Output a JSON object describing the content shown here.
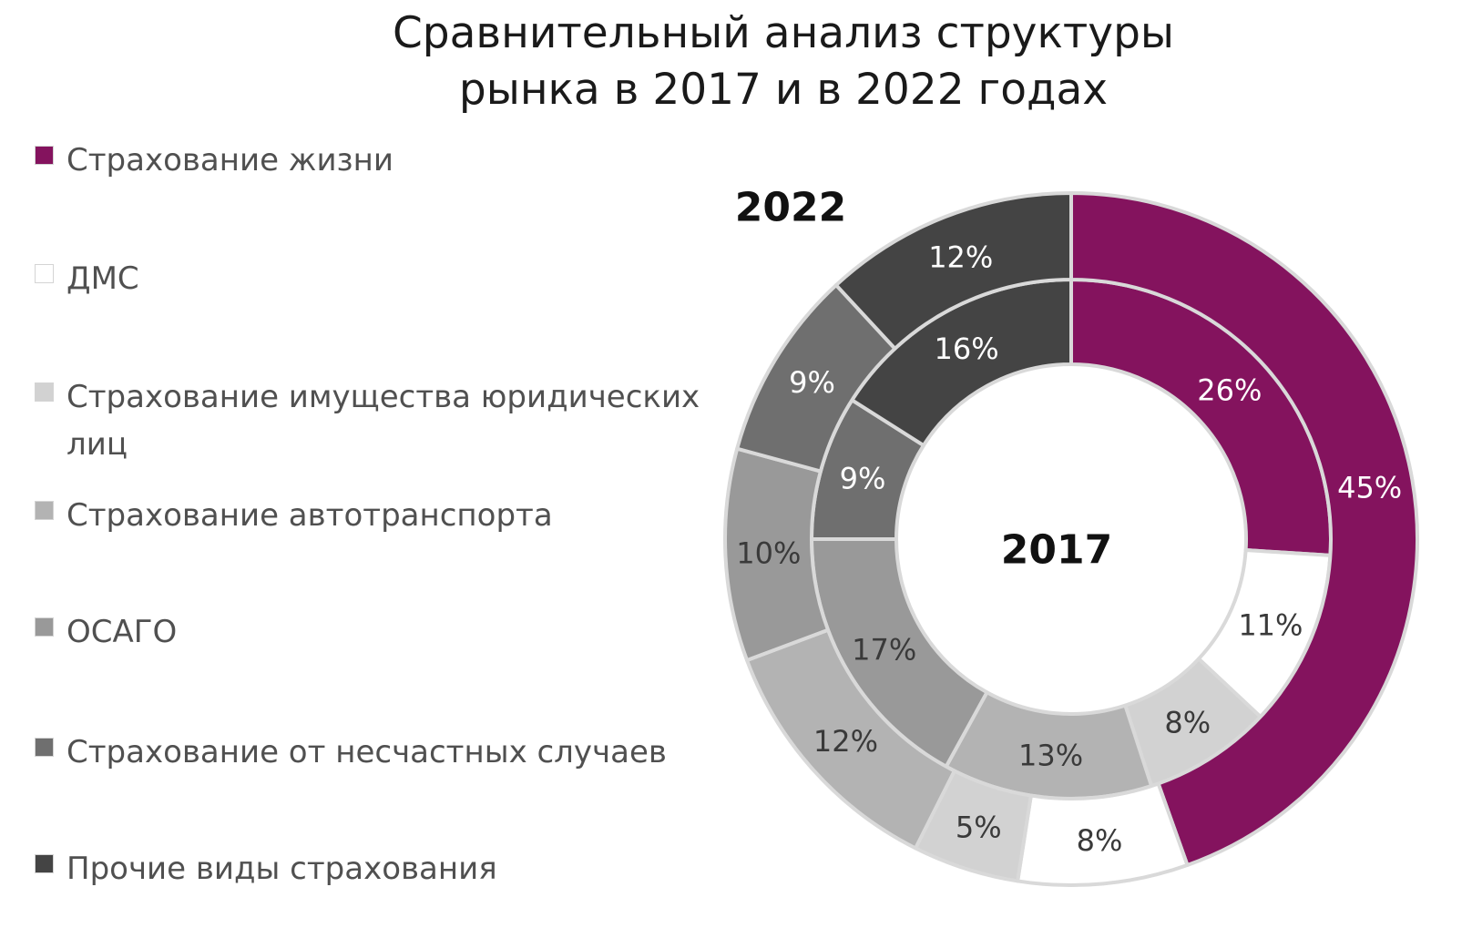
{
  "title": {
    "line1": "Сравнительный анализ структуры",
    "line2": "рынка в 2017 и в 2022 годах"
  },
  "chart_data": {
    "type": "donut",
    "legend_position": "left",
    "categories": [
      "Страхование жизни",
      "ДМС",
      "Страхование имущества юридических лиц",
      "Страхование автотранспорта",
      "ОСАГО",
      "Страхование от несчастных случаев",
      "Прочие виды страхования"
    ],
    "colors": [
      "#84135e",
      "#ffffff",
      "#d2d2d2",
      "#b3b3b3",
      "#999999",
      "#6f6f6f",
      "#444444"
    ],
    "label_colors": [
      "#ffffff",
      "#3a3a3a",
      "#3a3a3a",
      "#3a3a3a",
      "#3a3a3a",
      "#ffffff",
      "#ffffff"
    ],
    "series": [
      {
        "name": "2017",
        "ring": "inner",
        "values": [
          26,
          11,
          8,
          13,
          17,
          9,
          16
        ],
        "labels": [
          "26%",
          "11%",
          "8%",
          "13%",
          "17%",
          "9%",
          "16%"
        ]
      },
      {
        "name": "2022",
        "ring": "outer",
        "values": [
          45,
          8,
          5,
          12,
          10,
          9,
          12
        ],
        "labels": [
          "45%",
          "8%",
          "5%",
          "12%",
          "10%",
          "9%",
          "12%"
        ]
      }
    ]
  }
}
